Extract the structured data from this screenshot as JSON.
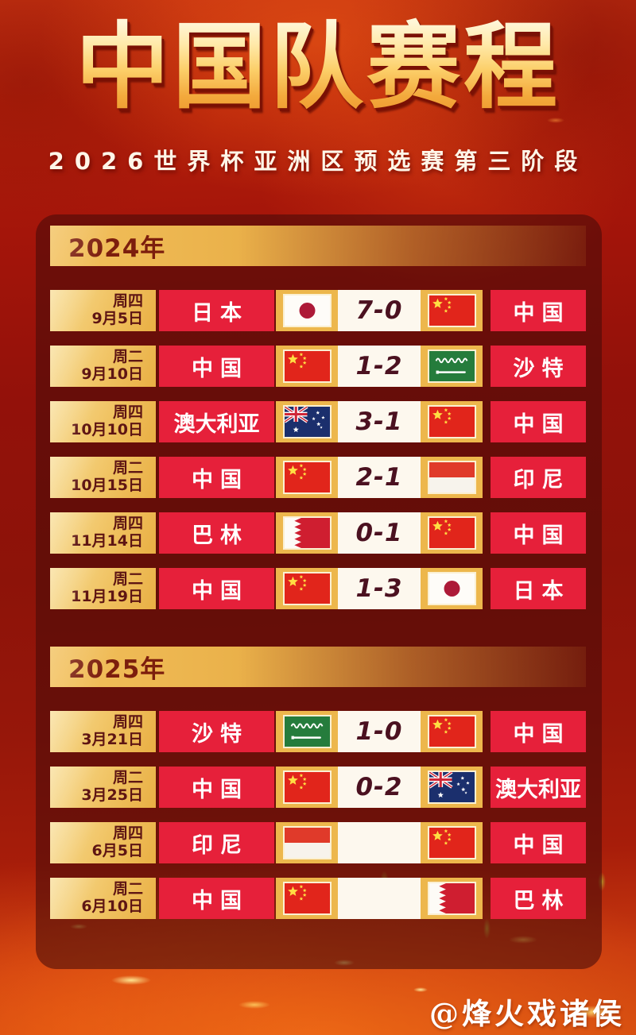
{
  "header": {
    "title": "中国队赛程",
    "subtitle": "2026世界杯亚洲区预选赛第三阶段"
  },
  "sections": [
    {
      "year_label": "2024年",
      "rows": [
        {
          "weekday": "周四",
          "date": "9月5日",
          "home": "日本",
          "home_flag": "japan",
          "score": "7-0",
          "away_flag": "china",
          "away": "中国"
        },
        {
          "weekday": "周二",
          "date": "9月10日",
          "home": "中国",
          "home_flag": "china",
          "score": "1-2",
          "away_flag": "saudi",
          "away": "沙特"
        },
        {
          "weekday": "周四",
          "date": "10月10日",
          "home": "澳大利亚",
          "home_flag": "australia",
          "score": "3-1",
          "away_flag": "china",
          "away": "中国"
        },
        {
          "weekday": "周二",
          "date": "10月15日",
          "home": "中国",
          "home_flag": "china",
          "score": "2-1",
          "away_flag": "indonesia",
          "away": "印尼"
        },
        {
          "weekday": "周四",
          "date": "11月14日",
          "home": "巴林",
          "home_flag": "bahrain",
          "score": "0-1",
          "away_flag": "china",
          "away": "中国"
        },
        {
          "weekday": "周二",
          "date": "11月19日",
          "home": "中国",
          "home_flag": "china",
          "score": "1-3",
          "away_flag": "japan",
          "away": "日本"
        }
      ]
    },
    {
      "year_label": "2025年",
      "rows": [
        {
          "weekday": "周四",
          "date": "3月21日",
          "home": "沙特",
          "home_flag": "saudi",
          "score": "1-0",
          "away_flag": "china",
          "away": "中国"
        },
        {
          "weekday": "周二",
          "date": "3月25日",
          "home": "中国",
          "home_flag": "china",
          "score": "0-2",
          "away_flag": "australia",
          "away": "澳大利亚"
        },
        {
          "weekday": "周四",
          "date": "6月5日",
          "home": "印尼",
          "home_flag": "indonesia",
          "score": "",
          "away_flag": "china",
          "away": "中国"
        },
        {
          "weekday": "周二",
          "date": "6月10日",
          "home": "中国",
          "home_flag": "china",
          "score": "",
          "away_flag": "bahrain",
          "away": "巴林"
        }
      ]
    }
  ],
  "watermark": "@烽火戏诸侯",
  "colors": {
    "background_red": "#a4150a",
    "panel_maroon": "#460b08",
    "team_cell_red": "#e6203a",
    "gold_flag_cell": "#edb74c",
    "gold_date_cell": "#f0c261",
    "score_cell_bg": "#fdf8ee",
    "score_text": "#4b1120",
    "date_text": "#5e1513",
    "year_label_text": "#7c1e0d",
    "title_gold_top": "#fff6d8",
    "title_gold_bottom": "#ee9a2f",
    "subtitle_text": "#fff6e8"
  }
}
